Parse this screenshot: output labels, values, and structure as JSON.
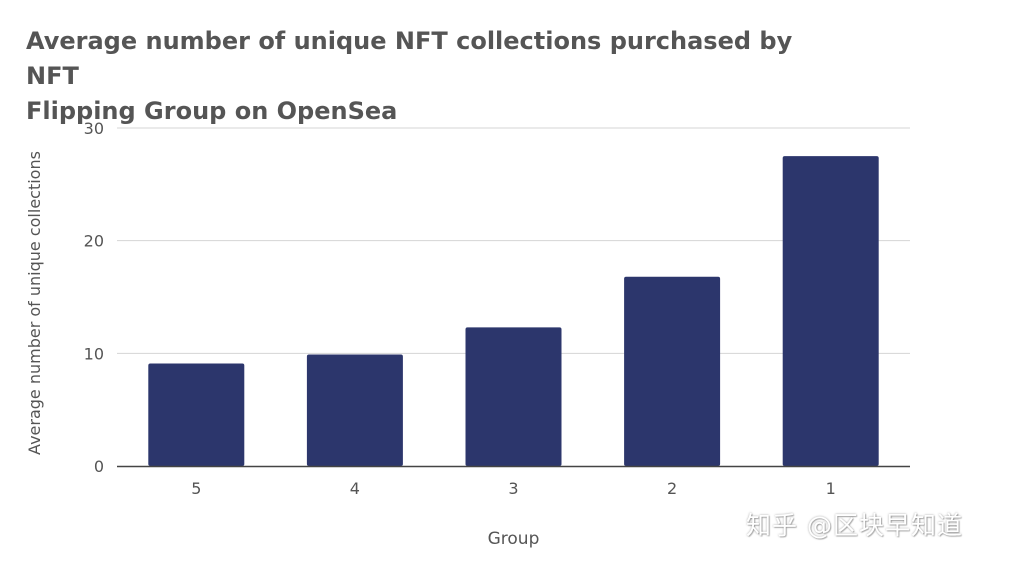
{
  "chart_data": {
    "type": "bar",
    "title_lines": [
      "Average number of unique NFT collections purchased by NFT",
      "Flipping Group on OpenSea"
    ],
    "xlabel": "Group",
    "ylabel": "Average number of unique collections",
    "categories": [
      "5",
      "4",
      "3",
      "2",
      "1"
    ],
    "values": [
      9.1,
      9.9,
      12.3,
      16.8,
      27.5
    ],
    "ylim": [
      0,
      30
    ],
    "yticks": [
      "0",
      "10",
      "20",
      "30"
    ],
    "grid": true,
    "legend": "none",
    "bar_color": "#2c366c",
    "grid_color": "#d4d4d4",
    "axis_color": "#444444",
    "text_color": "#555555"
  },
  "watermark": "知乎 @区块早知道"
}
